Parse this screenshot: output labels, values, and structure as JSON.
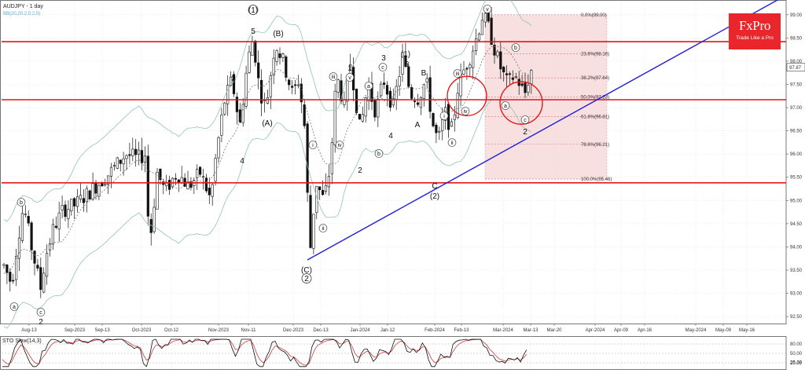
{
  "header": {
    "symbol_line": "AUDJPY - 1 day",
    "indicator_line": "BB(20,20.2,0,2,0)",
    "osc_label": "STO Slow(14,3)"
  },
  "logo": {
    "brand": "FxPro",
    "tagline": "Trade Like a Pro"
  },
  "colors": {
    "resistance": "#e0171c",
    "trendline": "#1f1fd6",
    "bollinger": "#8fc3b7",
    "fib_zone": "#f7dada",
    "circle": "#e31b1b",
    "candle": "#111111"
  },
  "chart_data": {
    "type": "candlestick",
    "price_axis": {
      "ticks": [
        "99.00",
        "98.50",
        "98.00",
        "97.50",
        "97.00",
        "96.50",
        "96.00",
        "95.50",
        "95.00",
        "94.50",
        "94.00",
        "93.50",
        "93.00",
        "92.50"
      ],
      "range": [
        92.35,
        99.25
      ],
      "current_price": "97.87"
    },
    "time_axis": [
      "Aug-13",
      "Sep-2023",
      "Sep-13",
      "Oct-2023",
      "Oct-12",
      "Nov-2023",
      "Nov-11",
      "Dec-2023",
      "Dec-13",
      "Jan-2024",
      "Jan-12",
      "Feb-2024",
      "Feb-13",
      "Mar-2024",
      "Mar-13",
      "Mar-20",
      "Apr-2024",
      "Apr-09",
      "Apr-16",
      "May-2024",
      "May-09",
      "May-16"
    ],
    "horizontal_levels": [
      98.42,
      97.17,
      95.38
    ],
    "trendline": {
      "from": {
        "x": "2023-12-01",
        "y": 93.72
      },
      "to": {
        "x": "2024-04-30",
        "y": 99.25
      }
    },
    "fibonacci": [
      {
        "label": "0.0%(99.00)",
        "value": 99.0
      },
      {
        "label": "23.6%(98.16)",
        "value": 98.16
      },
      {
        "label": "38.2%(97.64)",
        "value": 97.64
      },
      {
        "label": "50.0%(97.23)",
        "value": 97.23
      },
      {
        "label": "61.8%(96.81)",
        "value": 96.81
      },
      {
        "label": "78.6%(96.21)",
        "value": 96.21
      },
      {
        "label": "100.0%(95.46)",
        "value": 95.46
      }
    ],
    "wave_labels": [
      {
        "text": "a"
      },
      {
        "text": "b"
      },
      {
        "text": "c"
      },
      {
        "text": "2"
      },
      {
        "text": "3"
      },
      {
        "text": "4"
      },
      {
        "text": "(1)"
      },
      {
        "text": "5"
      },
      {
        "text": "(A)"
      },
      {
        "text": "(B)"
      },
      {
        "text": "(C)"
      },
      {
        "text": "2"
      },
      {
        "text": "i"
      },
      {
        "text": "ii"
      },
      {
        "text": "iii"
      },
      {
        "text": "iv"
      },
      {
        "text": "v"
      },
      {
        "text": "1"
      },
      {
        "text": "2"
      },
      {
        "text": "a"
      },
      {
        "text": "b"
      },
      {
        "text": "c"
      },
      {
        "text": "3"
      },
      {
        "text": "4"
      },
      {
        "text": "(1)"
      },
      {
        "text": "5"
      },
      {
        "text": "A"
      },
      {
        "text": "B"
      },
      {
        "text": "C"
      },
      {
        "text": "(2)"
      },
      {
        "text": "i"
      },
      {
        "text": "ii"
      },
      {
        "text": "iii"
      },
      {
        "text": "iv"
      },
      {
        "text": "v"
      },
      {
        "text": "a"
      },
      {
        "text": "b"
      },
      {
        "text": "c"
      },
      {
        "text": "2"
      }
    ],
    "oscillator": {
      "ticks": [
        "80.00",
        "50.00",
        "20.00"
      ],
      "current": "25.29"
    }
  }
}
